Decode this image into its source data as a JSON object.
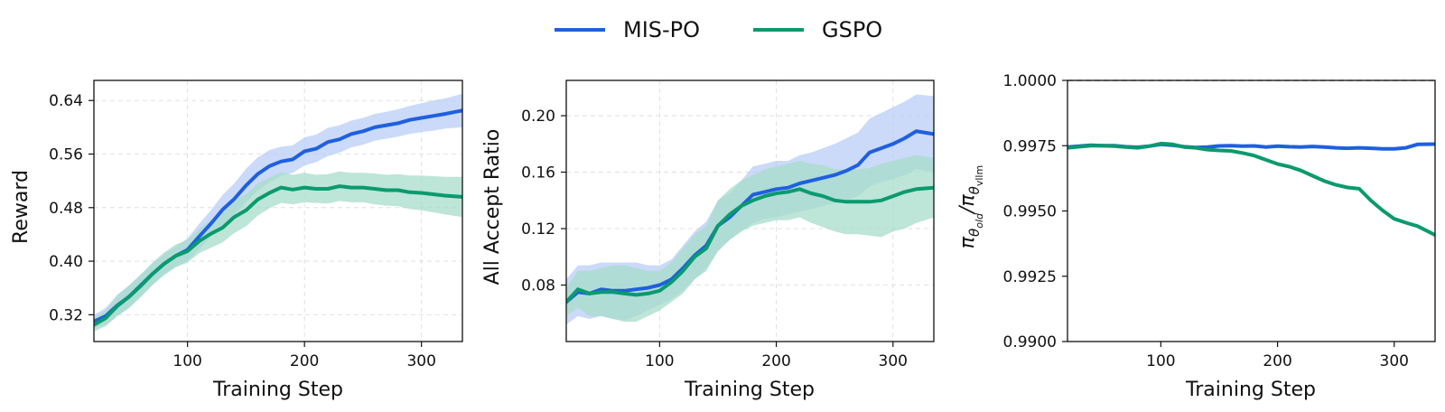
{
  "legend": {
    "items": [
      {
        "label": "MIS-PO",
        "color": "#1f5fe0"
      },
      {
        "label": "GSPO",
        "color": "#0a9a6e"
      }
    ]
  },
  "colors": {
    "mis_po": "#1f5fe0",
    "mis_po_band": "#b8cdf5",
    "gspo": "#0a9a6e",
    "gspo_band": "#a7dccb"
  },
  "chart_data": [
    {
      "type": "line",
      "xlabel": "Training Step",
      "ylabel": "Reward",
      "xlim": [
        20,
        335
      ],
      "ylim": [
        0.28,
        0.67
      ],
      "xticks": [
        100,
        200,
        300
      ],
      "yticks": [
        0.32,
        0.4,
        0.48,
        0.56,
        0.64
      ],
      "ytick_labels": [
        "0.32",
        "0.40",
        "0.48",
        "0.56",
        "0.64"
      ],
      "grid": true,
      "x": [
        20,
        30,
        40,
        50,
        60,
        70,
        80,
        90,
        100,
        110,
        120,
        130,
        140,
        150,
        160,
        170,
        180,
        190,
        200,
        210,
        220,
        230,
        240,
        250,
        260,
        270,
        280,
        290,
        300,
        310,
        320,
        335
      ],
      "series": [
        {
          "name": "MIS-PO",
          "values": [
            0.31,
            0.318,
            0.334,
            0.347,
            0.364,
            0.381,
            0.396,
            0.408,
            0.417,
            0.437,
            0.456,
            0.477,
            0.493,
            0.513,
            0.53,
            0.542,
            0.549,
            0.552,
            0.564,
            0.568,
            0.578,
            0.582,
            0.59,
            0.594,
            0.6,
            0.603,
            0.606,
            0.611,
            0.614,
            0.617,
            0.62,
            0.625
          ],
          "lower": [
            0.3,
            0.305,
            0.318,
            0.33,
            0.348,
            0.365,
            0.38,
            0.392,
            0.4,
            0.418,
            0.436,
            0.455,
            0.47,
            0.488,
            0.505,
            0.518,
            0.527,
            0.532,
            0.543,
            0.548,
            0.557,
            0.562,
            0.57,
            0.574,
            0.58,
            0.583,
            0.586,
            0.59,
            0.593,
            0.595,
            0.598,
            0.6
          ],
          "upper": [
            0.32,
            0.33,
            0.35,
            0.364,
            0.38,
            0.396,
            0.41,
            0.422,
            0.434,
            0.456,
            0.476,
            0.499,
            0.516,
            0.538,
            0.555,
            0.566,
            0.571,
            0.573,
            0.585,
            0.589,
            0.599,
            0.603,
            0.61,
            0.614,
            0.62,
            0.623,
            0.627,
            0.632,
            0.636,
            0.64,
            0.643,
            0.65
          ]
        },
        {
          "name": "GSPO",
          "values": [
            0.305,
            0.315,
            0.333,
            0.347,
            0.363,
            0.381,
            0.396,
            0.408,
            0.415,
            0.43,
            0.441,
            0.45,
            0.466,
            0.476,
            0.492,
            0.502,
            0.51,
            0.507,
            0.51,
            0.508,
            0.508,
            0.512,
            0.51,
            0.51,
            0.508,
            0.506,
            0.506,
            0.503,
            0.502,
            0.5,
            0.498,
            0.496
          ],
          "lower": [
            0.295,
            0.303,
            0.318,
            0.33,
            0.346,
            0.364,
            0.379,
            0.391,
            0.398,
            0.412,
            0.42,
            0.428,
            0.442,
            0.452,
            0.468,
            0.479,
            0.487,
            0.485,
            0.488,
            0.487,
            0.486,
            0.49,
            0.488,
            0.488,
            0.485,
            0.483,
            0.482,
            0.478,
            0.476,
            0.473,
            0.47,
            0.466
          ],
          "upper": [
            0.315,
            0.327,
            0.348,
            0.364,
            0.38,
            0.398,
            0.413,
            0.425,
            0.432,
            0.448,
            0.462,
            0.472,
            0.49,
            0.5,
            0.516,
            0.525,
            0.533,
            0.529,
            0.532,
            0.529,
            0.53,
            0.534,
            0.532,
            0.532,
            0.531,
            0.529,
            0.53,
            0.528,
            0.528,
            0.527,
            0.526,
            0.526
          ]
        }
      ]
    },
    {
      "type": "line",
      "xlabel": "Training Step",
      "ylabel": "All Accept Ratio",
      "xlim": [
        20,
        335
      ],
      "ylim": [
        0.04,
        0.225
      ],
      "xticks": [
        100,
        200,
        300
      ],
      "yticks": [
        0.08,
        0.12,
        0.16,
        0.2
      ],
      "ytick_labels": [
        "0.08",
        "0.12",
        "0.16",
        "0.20"
      ],
      "grid": true,
      "x": [
        20,
        30,
        40,
        50,
        60,
        70,
        80,
        90,
        100,
        110,
        120,
        130,
        140,
        150,
        160,
        170,
        180,
        190,
        200,
        210,
        220,
        230,
        240,
        250,
        260,
        270,
        280,
        290,
        300,
        310,
        320,
        335
      ],
      "series": [
        {
          "name": "MIS-PO",
          "values": [
            0.068,
            0.075,
            0.074,
            0.077,
            0.076,
            0.076,
            0.077,
            0.078,
            0.08,
            0.084,
            0.092,
            0.101,
            0.108,
            0.122,
            0.128,
            0.136,
            0.144,
            0.146,
            0.148,
            0.149,
            0.152,
            0.154,
            0.156,
            0.158,
            0.161,
            0.165,
            0.174,
            0.177,
            0.18,
            0.184,
            0.189,
            0.187
          ],
          "lower": [
            0.052,
            0.058,
            0.056,
            0.058,
            0.056,
            0.055,
            0.058,
            0.062,
            0.066,
            0.07,
            0.076,
            0.084,
            0.092,
            0.104,
            0.112,
            0.118,
            0.124,
            0.127,
            0.128,
            0.13,
            0.132,
            0.134,
            0.136,
            0.138,
            0.14,
            0.143,
            0.15,
            0.153,
            0.155,
            0.158,
            0.162,
            0.16
          ],
          "upper": [
            0.084,
            0.094,
            0.094,
            0.096,
            0.096,
            0.096,
            0.096,
            0.094,
            0.094,
            0.098,
            0.108,
            0.118,
            0.125,
            0.14,
            0.145,
            0.154,
            0.164,
            0.166,
            0.168,
            0.168,
            0.172,
            0.174,
            0.177,
            0.18,
            0.184,
            0.188,
            0.198,
            0.202,
            0.206,
            0.21,
            0.215,
            0.214
          ]
        },
        {
          "name": "GSPO",
          "values": [
            0.068,
            0.077,
            0.074,
            0.075,
            0.075,
            0.074,
            0.073,
            0.074,
            0.076,
            0.082,
            0.09,
            0.1,
            0.106,
            0.122,
            0.13,
            0.136,
            0.14,
            0.143,
            0.145,
            0.146,
            0.148,
            0.145,
            0.143,
            0.14,
            0.139,
            0.139,
            0.139,
            0.14,
            0.143,
            0.146,
            0.148,
            0.149
          ],
          "lower": [
            0.058,
            0.064,
            0.058,
            0.058,
            0.056,
            0.054,
            0.054,
            0.058,
            0.062,
            0.068,
            0.074,
            0.084,
            0.09,
            0.104,
            0.112,
            0.118,
            0.122,
            0.124,
            0.126,
            0.126,
            0.128,
            0.124,
            0.121,
            0.118,
            0.116,
            0.116,
            0.115,
            0.114,
            0.118,
            0.12,
            0.124,
            0.128
          ],
          "upper": [
            0.078,
            0.09,
            0.09,
            0.092,
            0.094,
            0.094,
            0.092,
            0.09,
            0.09,
            0.096,
            0.106,
            0.116,
            0.122,
            0.14,
            0.148,
            0.154,
            0.158,
            0.162,
            0.164,
            0.166,
            0.168,
            0.166,
            0.165,
            0.162,
            0.162,
            0.162,
            0.163,
            0.166,
            0.168,
            0.17,
            0.172,
            0.17
          ]
        }
      ]
    },
    {
      "type": "line",
      "xlabel": "Training Step",
      "ylabel": "πθold/πθvllm",
      "ylabel_parts": {
        "main": "π",
        "sub1": "θ",
        "sub1_sub": "old",
        "slash": "/π",
        "sub2": "θ",
        "sub2_sub": "vllm"
      },
      "xlim": [
        20,
        335
      ],
      "ylim": [
        0.99,
        1.0
      ],
      "xticks": [
        100,
        200,
        300
      ],
      "yticks": [
        0.99,
        0.9925,
        0.995,
        0.9975,
        1.0
      ],
      "ytick_labels": [
        "0.9900",
        "0.9925",
        "0.9950",
        "0.9975",
        "1.0000"
      ],
      "reference_line": 1.0,
      "grid": false,
      "x": [
        20,
        30,
        40,
        50,
        60,
        70,
        80,
        90,
        100,
        110,
        120,
        130,
        140,
        150,
        160,
        170,
        180,
        190,
        200,
        210,
        220,
        230,
        240,
        250,
        260,
        270,
        280,
        290,
        300,
        310,
        320,
        335
      ],
      "series": [
        {
          "name": "MIS-PO",
          "values": [
            0.99745,
            0.99748,
            0.99752,
            0.9975,
            0.9975,
            0.99746,
            0.99744,
            0.99748,
            0.99755,
            0.99752,
            0.99746,
            0.99743,
            0.99745,
            0.99749,
            0.9975,
            0.99748,
            0.99749,
            0.99745,
            0.99748,
            0.99746,
            0.99745,
            0.99747,
            0.99745,
            0.99742,
            0.9974,
            0.99742,
            0.9974,
            0.99738,
            0.99738,
            0.99742,
            0.99755,
            0.99756
          ]
        },
        {
          "name": "GSPO",
          "values": [
            0.99742,
            0.99746,
            0.9975,
            0.9975,
            0.99748,
            0.99745,
            0.99742,
            0.99748,
            0.99758,
            0.99755,
            0.99745,
            0.99742,
            0.99735,
            0.99732,
            0.9973,
            0.99722,
            0.99712,
            0.99696,
            0.9968,
            0.9967,
            0.99655,
            0.99635,
            0.99615,
            0.996,
            0.9959,
            0.99585,
            0.9954,
            0.99502,
            0.9947,
            0.99455,
            0.99442,
            0.99408
          ]
        }
      ]
    }
  ]
}
